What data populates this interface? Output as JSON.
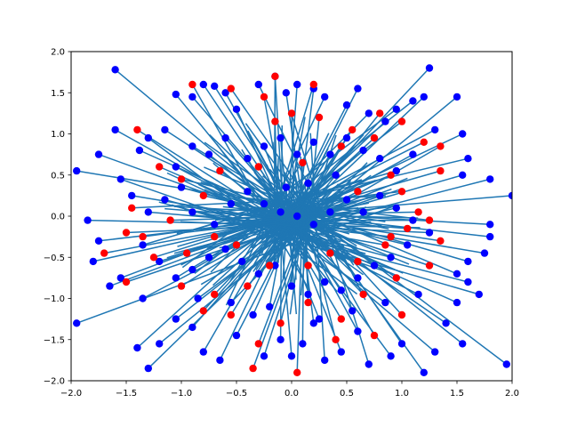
{
  "chart_data": {
    "type": "scatter",
    "title": "",
    "xlabel": "",
    "ylabel": "",
    "xlim": [
      -2.0,
      2.0
    ],
    "ylim": [
      -2.0,
      2.0
    ],
    "grid": false,
    "legend": "none",
    "x_ticks": [
      "−2.0",
      "−1.5",
      "−1.0",
      "−0.5",
      "0.0",
      "0.5",
      "1.0",
      "1.5",
      "2.0"
    ],
    "y_ticks": [
      "−2.0",
      "−1.5",
      "−1.0",
      "−0.5",
      "0.0",
      "0.5",
      "1.0",
      "1.5",
      "2.0"
    ],
    "colors": {
      "line": "#1f77b4",
      "blue": "#0000ff",
      "red": "#ff0000"
    },
    "series": [
      {
        "color": "#0000ff",
        "points": [
          [
            -1.6,
            1.78
          ],
          [
            -1.6,
            1.05
          ],
          [
            -1.38,
            0.8
          ],
          [
            -1.3,
            0.95
          ],
          [
            -1.15,
            1.05
          ],
          [
            -1.05,
            1.48
          ],
          [
            -0.9,
            1.45
          ],
          [
            -0.8,
            1.6
          ],
          [
            -0.7,
            1.58
          ],
          [
            -0.6,
            1.5
          ],
          [
            -0.5,
            1.3
          ],
          [
            -0.3,
            1.6
          ],
          [
            -0.15,
            1.7
          ],
          [
            -0.05,
            1.5
          ],
          [
            0.05,
            1.6
          ],
          [
            0.2,
            1.55
          ],
          [
            0.3,
            1.45
          ],
          [
            0.5,
            1.35
          ],
          [
            0.6,
            1.55
          ],
          [
            0.7,
            1.25
          ],
          [
            0.85,
            1.15
          ],
          [
            0.95,
            1.3
          ],
          [
            1.1,
            1.4
          ],
          [
            1.25,
            1.8
          ],
          [
            1.2,
            1.45
          ],
          [
            1.5,
            1.45
          ],
          [
            1.3,
            1.05
          ],
          [
            1.55,
            1.0
          ],
          [
            1.6,
            0.7
          ],
          [
            1.55,
            0.5
          ],
          [
            1.8,
            0.45
          ],
          [
            2.0,
            0.25
          ],
          [
            1.8,
            -0.1
          ],
          [
            1.8,
            -0.25
          ],
          [
            1.6,
            -0.55
          ],
          [
            1.75,
            -0.45
          ],
          [
            1.5,
            -0.7
          ],
          [
            1.6,
            -0.8
          ],
          [
            1.7,
            -0.95
          ],
          [
            1.5,
            -1.05
          ],
          [
            1.4,
            -1.3
          ],
          [
            1.55,
            -1.55
          ],
          [
            1.95,
            -1.8
          ],
          [
            1.3,
            -1.65
          ],
          [
            1.2,
            -1.9
          ],
          [
            1.0,
            -1.55
          ],
          [
            0.9,
            -1.7
          ],
          [
            0.7,
            -1.8
          ],
          [
            0.6,
            -1.4
          ],
          [
            0.45,
            -1.65
          ],
          [
            0.3,
            -1.75
          ],
          [
            0.25,
            -1.25
          ],
          [
            0.1,
            -1.55
          ],
          [
            0.0,
            -1.7
          ],
          [
            -0.1,
            -1.5
          ],
          [
            -0.25,
            -1.7
          ],
          [
            -0.35,
            -1.2
          ],
          [
            -0.5,
            -1.45
          ],
          [
            -0.65,
            -1.75
          ],
          [
            -0.8,
            -1.65
          ],
          [
            -0.9,
            -1.35
          ],
          [
            -1.05,
            -1.25
          ],
          [
            -1.2,
            -1.55
          ],
          [
            -1.3,
            -1.85
          ],
          [
            -1.4,
            -1.6
          ],
          [
            -1.35,
            -1.0
          ],
          [
            -1.55,
            -0.75
          ],
          [
            -1.65,
            -0.85
          ],
          [
            -1.8,
            -0.55
          ],
          [
            -1.95,
            -1.3
          ],
          [
            -1.75,
            -0.3
          ],
          [
            -1.85,
            -0.05
          ],
          [
            -1.95,
            0.55
          ],
          [
            -1.75,
            0.75
          ],
          [
            -1.55,
            0.45
          ],
          [
            -1.45,
            0.25
          ],
          [
            -1.3,
            0.05
          ],
          [
            -1.15,
            0.2
          ],
          [
            -1.0,
            0.35
          ],
          [
            -0.9,
            0.05
          ],
          [
            -0.7,
            -0.1
          ],
          [
            -0.55,
            0.15
          ],
          [
            -0.4,
            0.3
          ],
          [
            -0.25,
            0.15
          ],
          [
            -0.1,
            0.05
          ],
          [
            0.05,
            0.0
          ],
          [
            0.2,
            -0.1
          ],
          [
            0.35,
            0.05
          ],
          [
            0.5,
            0.2
          ],
          [
            0.65,
            0.05
          ],
          [
            0.8,
            0.25
          ],
          [
            0.95,
            0.1
          ],
          [
            1.1,
            -0.05
          ],
          [
            1.25,
            -0.2
          ],
          [
            1.05,
            -0.35
          ],
          [
            0.9,
            -0.5
          ],
          [
            0.75,
            -0.6
          ],
          [
            0.6,
            -0.75
          ],
          [
            0.45,
            -0.9
          ],
          [
            0.3,
            -0.8
          ],
          [
            0.15,
            -0.95
          ],
          [
            0.0,
            -0.85
          ],
          [
            -0.15,
            -0.6
          ],
          [
            -0.3,
            -0.7
          ],
          [
            -0.45,
            -0.55
          ],
          [
            -0.6,
            -0.4
          ],
          [
            -0.75,
            -0.5
          ],
          [
            -0.9,
            -0.65
          ],
          [
            -1.05,
            -0.75
          ],
          [
            -1.2,
            -0.55
          ],
          [
            -1.35,
            -0.35
          ],
          [
            -0.4,
            0.7
          ],
          [
            -0.25,
            0.85
          ],
          [
            -0.1,
            0.95
          ],
          [
            0.05,
            0.75
          ],
          [
            0.2,
            0.9
          ],
          [
            0.35,
            0.75
          ],
          [
            0.5,
            0.95
          ],
          [
            0.65,
            0.8
          ],
          [
            0.8,
            0.7
          ],
          [
            0.95,
            0.55
          ],
          [
            1.1,
            0.75
          ],
          [
            -0.6,
            0.95
          ],
          [
            -0.75,
            0.75
          ],
          [
            -0.9,
            0.85
          ],
          [
            -1.05,
            0.6
          ],
          [
            0.15,
            0.4
          ],
          [
            -0.05,
            0.35
          ],
          [
            0.4,
            0.5
          ],
          [
            -0.85,
            -1.0
          ],
          [
            -0.55,
            -1.05
          ],
          [
            -0.2,
            -1.1
          ],
          [
            0.2,
            -1.3
          ],
          [
            0.55,
            -1.15
          ],
          [
            0.85,
            -1.05
          ],
          [
            1.15,
            -0.95
          ]
        ]
      },
      {
        "color": "#ff0000",
        "points": [
          [
            -1.4,
            1.05
          ],
          [
            -0.9,
            1.6
          ],
          [
            -0.55,
            1.55
          ],
          [
            -0.25,
            1.45
          ],
          [
            0.0,
            1.25
          ],
          [
            -0.15,
            1.15
          ],
          [
            0.25,
            1.2
          ],
          [
            0.55,
            1.05
          ],
          [
            0.8,
            1.25
          ],
          [
            1.0,
            1.15
          ],
          [
            1.2,
            0.9
          ],
          [
            1.35,
            0.85
          ],
          [
            1.35,
            0.55
          ],
          [
            0.9,
            0.5
          ],
          [
            0.6,
            0.3
          ],
          [
            -0.15,
            1.7
          ],
          [
            0.2,
            1.6
          ],
          [
            -1.2,
            0.6
          ],
          [
            -1.0,
            0.45
          ],
          [
            -0.8,
            0.25
          ],
          [
            -1.1,
            -0.05
          ],
          [
            -1.35,
            -0.25
          ],
          [
            -1.5,
            -0.2
          ],
          [
            -1.25,
            -0.5
          ],
          [
            -0.95,
            -0.45
          ],
          [
            -0.7,
            -0.25
          ],
          [
            -0.5,
            -0.35
          ],
          [
            -1.0,
            -0.85
          ],
          [
            -0.7,
            -0.95
          ],
          [
            -0.4,
            -0.85
          ],
          [
            -0.2,
            -0.6
          ],
          [
            0.15,
            -0.6
          ],
          [
            0.35,
            -0.45
          ],
          [
            0.6,
            -0.55
          ],
          [
            0.85,
            -0.35
          ],
          [
            1.05,
            -0.15
          ],
          [
            1.25,
            -0.05
          ],
          [
            1.35,
            -0.3
          ],
          [
            1.25,
            -0.6
          ],
          [
            0.95,
            -0.75
          ],
          [
            0.65,
            -0.95
          ],
          [
            0.45,
            -1.25
          ],
          [
            0.15,
            -1.05
          ],
          [
            -0.1,
            -1.3
          ],
          [
            -0.3,
            -1.55
          ],
          [
            -0.55,
            -1.2
          ],
          [
            -0.8,
            -1.15
          ],
          [
            -0.35,
            -1.85
          ],
          [
            0.05,
            -1.9
          ],
          [
            0.4,
            -1.5
          ],
          [
            0.75,
            -1.45
          ],
          [
            1.0,
            -1.2
          ],
          [
            -1.5,
            -0.8
          ],
          [
            -1.7,
            -0.45
          ],
          [
            -1.45,
            0.1
          ],
          [
            -0.65,
            0.55
          ],
          [
            -0.3,
            0.6
          ],
          [
            0.1,
            0.65
          ],
          [
            0.45,
            0.85
          ],
          [
            0.75,
            0.95
          ],
          [
            1.0,
            0.3
          ],
          [
            1.15,
            0.05
          ],
          [
            0.9,
            -0.25
          ]
        ]
      }
    ]
  }
}
